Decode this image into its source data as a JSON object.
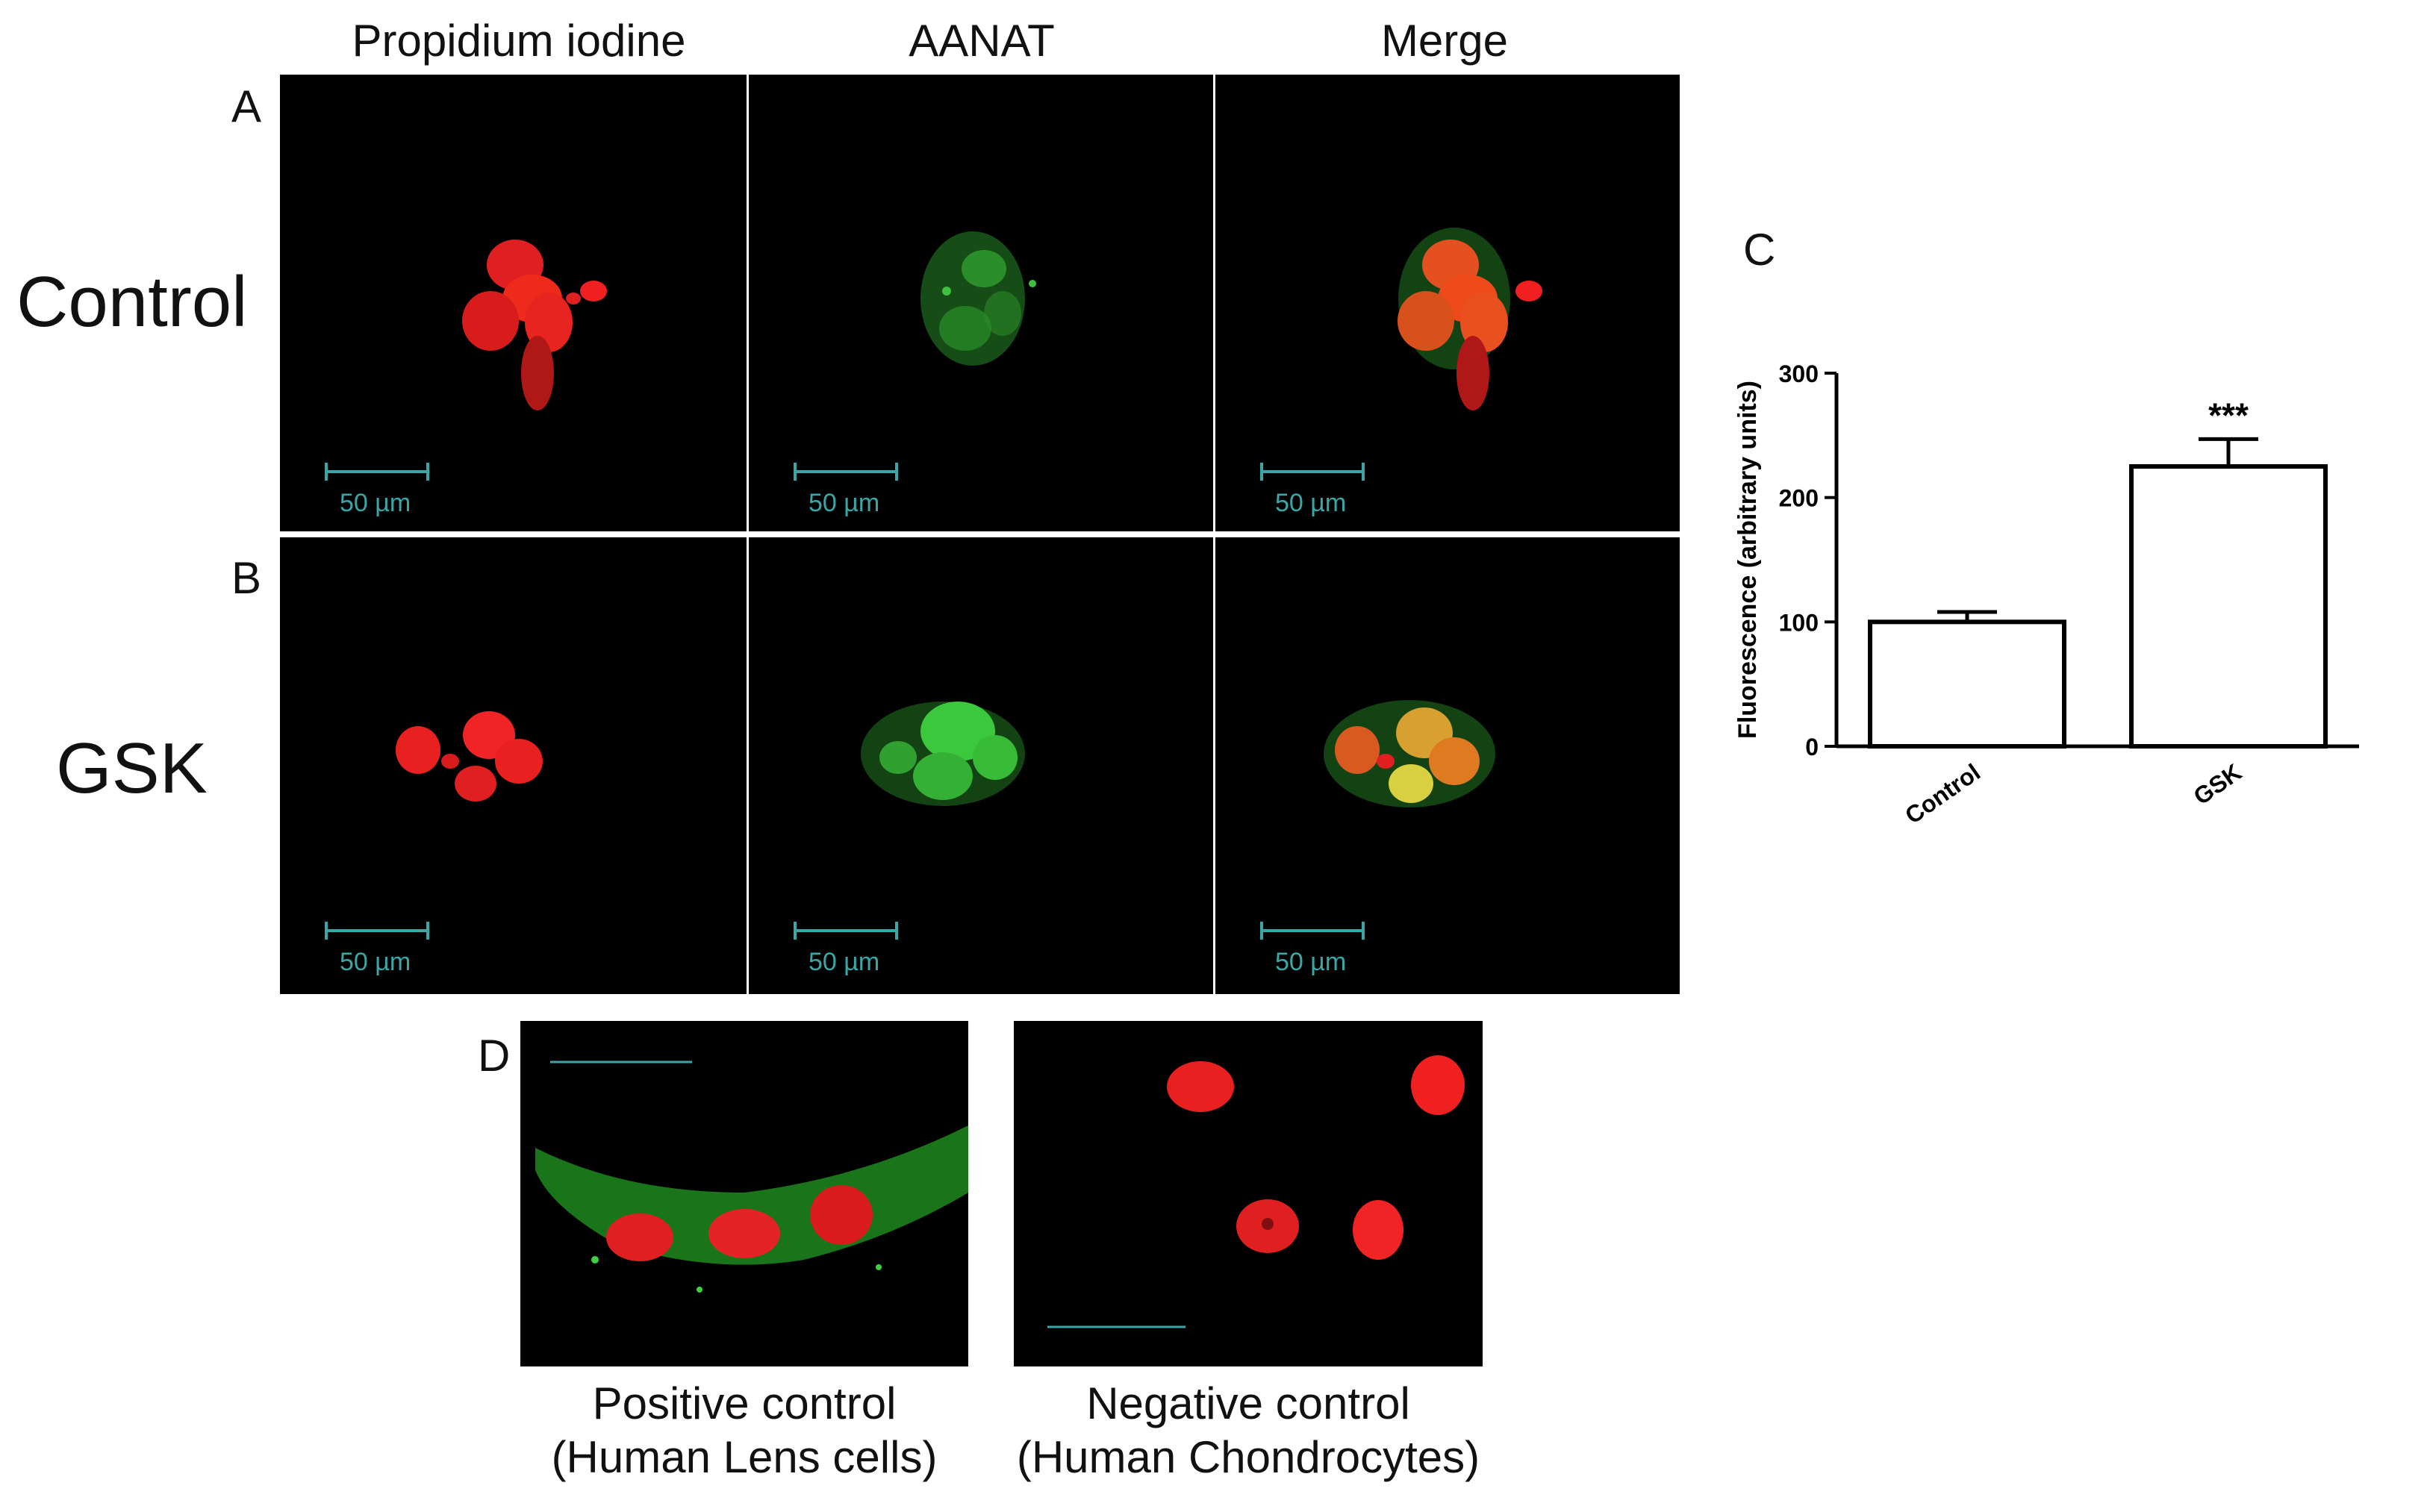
{
  "columns": [
    "Propidium iodine",
    "AANAT",
    "Merge"
  ],
  "rows": [
    {
      "letter": "A",
      "label": "Control"
    },
    {
      "letter": "B",
      "label": "GSK"
    }
  ],
  "scale_label": "50 µm",
  "panel_c_letter": "C",
  "panel_d_letter": "D",
  "panel_d": {
    "positive": {
      "line1": "Positive control",
      "line2": "(Human Lens cells)"
    },
    "negative": {
      "line1": "Negative control",
      "line2": "(Human Chondrocytes)"
    }
  },
  "colors": {
    "nucleus_red": "#ff2020",
    "aanat_green": "#33cc33",
    "merge_yellow": "#d8d040",
    "scalebar": "#3aa6a6"
  },
  "chart_data": {
    "type": "bar",
    "categories": [
      "Control",
      "GSK"
    ],
    "values": [
      100,
      225
    ],
    "errors": [
      8,
      22
    ],
    "significance": [
      "",
      "***"
    ],
    "ylabel": "Fluorescence (arbitrary units)",
    "ylim": [
      0,
      300
    ],
    "yticks": [
      0,
      100,
      200,
      300
    ]
  }
}
